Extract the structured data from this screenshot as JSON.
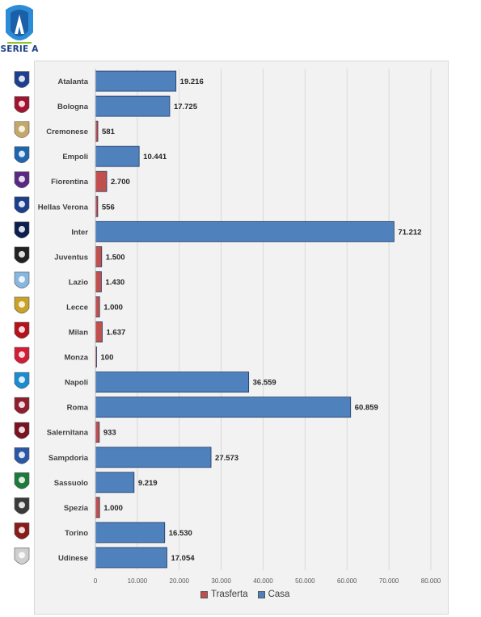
{
  "brand": {
    "logo_text": "SERIE A"
  },
  "colors": {
    "trasferta": "#c0504d",
    "casa": "#4f81bd",
    "bar_border": "#1f3864",
    "grid": "#d9d9d9"
  },
  "chart_data": {
    "type": "bar",
    "orientation": "horizontal",
    "categories": [
      "Atalanta",
      "Bologna",
      "Cremonese",
      "Empoli",
      "Fiorentina",
      "Hellas Verona",
      "Inter",
      "Juventus",
      "Lazio",
      "Lecce",
      "Milan",
      "Monza",
      "Napoli",
      "Roma",
      "Salernitana",
      "Sampdoria",
      "Sassuolo",
      "Spezia",
      "Torino",
      "Udinese"
    ],
    "values": [
      19216,
      17725,
      581,
      10441,
      2700,
      556,
      71212,
      1500,
      1430,
      1000,
      1637,
      100,
      36559,
      60859,
      933,
      27573,
      9219,
      1000,
      16530,
      17054
    ],
    "value_labels": [
      "19.216",
      "17.725",
      "581",
      "10.441",
      "2.700",
      "556",
      "71.212",
      "1.500",
      "1.430",
      "1.000",
      "1.637",
      "100",
      "36.559",
      "60.859",
      "933",
      "27.573",
      "9.219",
      "1.000",
      "16.530",
      "17.054"
    ],
    "bar_series": [
      "Casa",
      "Casa",
      "Trasferta",
      "Casa",
      "Trasferta",
      "Trasferta",
      "Casa",
      "Trasferta",
      "Trasferta",
      "Trasferta",
      "Trasferta",
      "Trasferta",
      "Casa",
      "Casa",
      "Trasferta",
      "Casa",
      "Casa",
      "Trasferta",
      "Casa",
      "Casa"
    ],
    "series": [
      {
        "name": "Trasferta",
        "color": "#c0504d"
      },
      {
        "name": "Casa",
        "color": "#4f81bd"
      }
    ],
    "xlim": [
      0,
      80000
    ],
    "xticks": [
      0,
      10000,
      20000,
      30000,
      40000,
      50000,
      60000,
      70000,
      80000
    ],
    "xtick_labels": [
      "0",
      "10.000",
      "20.000",
      "30.000",
      "40.000",
      "50.000",
      "60.000",
      "70.000",
      "80.000"
    ],
    "grid": true,
    "legend_position": "bottom",
    "title": "",
    "xlabel": "",
    "ylabel": ""
  }
}
